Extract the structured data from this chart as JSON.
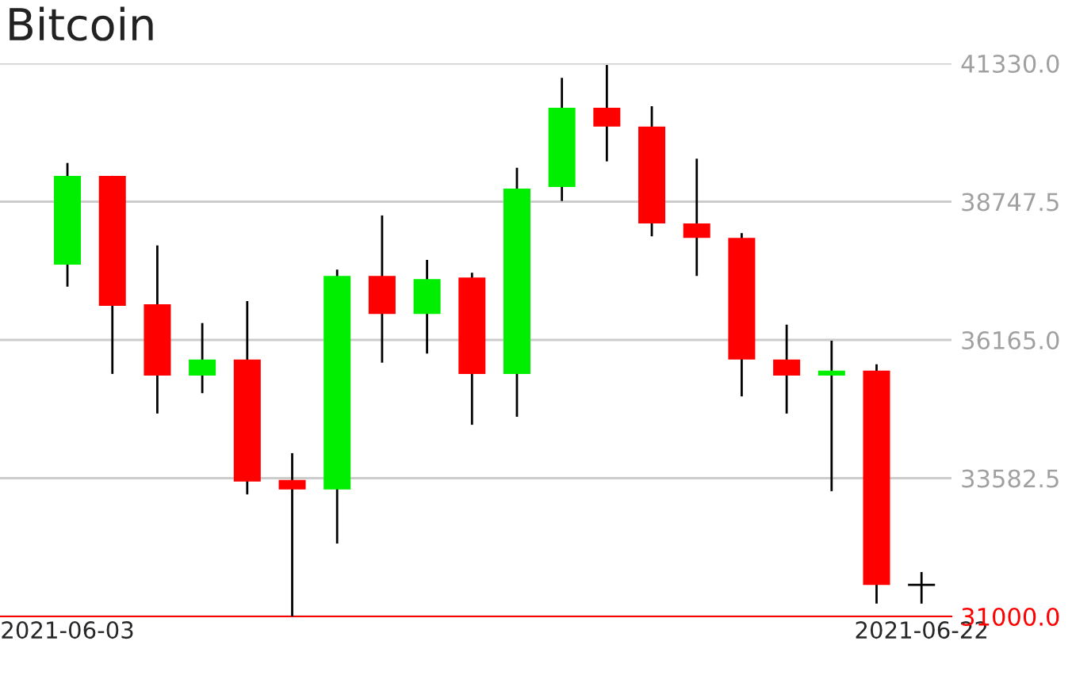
{
  "chart_data": {
    "type": "candlestick",
    "title": "Bitcoin",
    "x": [
      "2021-06-03",
      "2021-06-04",
      "2021-06-05",
      "2021-06-06",
      "2021-06-07",
      "2021-06-08",
      "2021-06-09",
      "2021-06-10",
      "2021-06-11",
      "2021-06-12",
      "2021-06-13",
      "2021-06-14",
      "2021-06-15",
      "2021-06-16",
      "2021-06-17",
      "2021-06-18",
      "2021-06-19",
      "2021-06-20",
      "2021-06-21",
      "2021-06-22"
    ],
    "ohlc": [
      [
        37570,
        39470,
        37160,
        39230
      ],
      [
        39230,
        39230,
        35530,
        36800
      ],
      [
        36830,
        37930,
        34790,
        35500
      ],
      [
        35500,
        36480,
        35170,
        35800
      ],
      [
        35800,
        36890,
        33280,
        33520
      ],
      [
        33550,
        34050,
        31000,
        33370
      ],
      [
        33370,
        37480,
        32360,
        37360
      ],
      [
        37360,
        38490,
        35740,
        36650
      ],
      [
        36650,
        37660,
        35910,
        37300
      ],
      [
        37330,
        37420,
        34580,
        35530
      ],
      [
        35530,
        39380,
        34730,
        38990
      ],
      [
        39020,
        41060,
        38760,
        40500
      ],
      [
        40500,
        41300,
        39500,
        40150
      ],
      [
        40150,
        40530,
        38100,
        38340
      ],
      [
        38340,
        39550,
        37360,
        38070
      ],
      [
        38070,
        38160,
        35110,
        35800
      ],
      [
        35800,
        36450,
        34790,
        35500
      ],
      [
        35500,
        36150,
        33340,
        35590
      ],
      [
        35590,
        35710,
        31240,
        31590
      ],
      [
        31590,
        31830,
        31240,
        31590
      ]
    ],
    "xlim": [
      "2021-06-01T12:00",
      "2021-06-22T16:00"
    ],
    "xticks": [
      "2021-06-03",
      "2021-06-22"
    ],
    "ylim": [
      31000,
      41330
    ],
    "yticks": [
      {
        "value": 31000,
        "label": "31000.0"
      },
      {
        "value": 33582.5,
        "label": "33582.5"
      },
      {
        "value": 36165,
        "label": "36165.0"
      },
      {
        "value": 38747.5,
        "label": "38747.5"
      },
      {
        "value": 41330,
        "label": "41330.0"
      }
    ],
    "grid": "y"
  }
}
